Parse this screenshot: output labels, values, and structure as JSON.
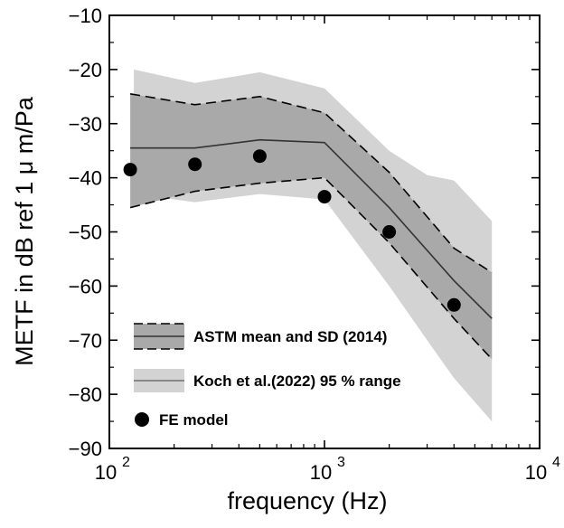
{
  "chart_data": {
    "type": "line",
    "xscale": "log",
    "xlim": [
      100,
      10000
    ],
    "ylim": [
      -90,
      -10
    ],
    "xlabel": "frequency (Hz)",
    "ylabel": "METF in dB ref 1  μ m/Pa",
    "x_ticks": [
      {
        "value": 100,
        "base": "10",
        "exp": "2"
      },
      {
        "value": 1000,
        "base": "10",
        "exp": "3"
      },
      {
        "value": 10000,
        "base": "10",
        "exp": "4"
      }
    ],
    "y_ticks": [
      -10,
      -20,
      -30,
      -40,
      -50,
      -60,
      -70,
      -80,
      -90
    ],
    "koch_range": {
      "name": "Koch et al.(2022) 95  % range",
      "color": "#d3d3d3",
      "x": [
        130,
        250,
        500,
        1000,
        2000,
        3000,
        4000,
        6000
      ],
      "upper": [
        -20,
        -22.5,
        -20.5,
        -23.5,
        -35,
        -39.5,
        -40.5,
        -48
      ],
      "lower": [
        -43,
        -44.5,
        -43,
        -44,
        -60,
        -70,
        -77,
        -85
      ]
    },
    "astm": {
      "name": "ASTM mean and SD (2014)",
      "sd_color": "#a9a9a9",
      "x": [
        125,
        250,
        500,
        1000,
        2000,
        4000,
        6000
      ],
      "upper": [
        -24.5,
        -26.5,
        -25,
        -28,
        -39,
        -53,
        -57.5
      ],
      "mean": [
        -34.5,
        -34.5,
        -33,
        -33.5,
        -45.5,
        -59,
        -66
      ],
      "lower": [
        -45.5,
        -42.5,
        -41,
        -40,
        -52,
        -66,
        -73.5
      ]
    },
    "fe_model": {
      "name": "FE model",
      "x": [
        125,
        250,
        500,
        1000,
        2000,
        4000
      ],
      "y": [
        -38.5,
        -37.5,
        -36,
        -43.5,
        -50,
        -63.5
      ]
    }
  }
}
